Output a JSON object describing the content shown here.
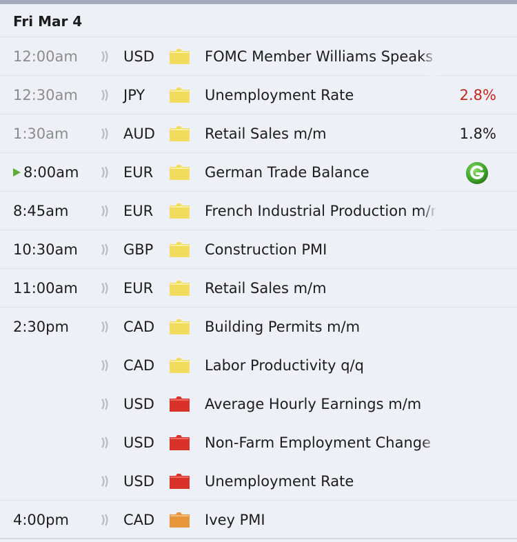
{
  "calendar": {
    "date": "Fri Mar 4",
    "events": [
      {
        "time": "12:00am",
        "currency": "USD",
        "title": "FOMC Member Williams Speaks",
        "impact": "low",
        "actual": ""
      },
      {
        "time": "12:30am",
        "currency": "JPY",
        "title": "Unemployment Rate",
        "impact": "low",
        "actual": "2.8%"
      },
      {
        "time": "1:30am",
        "currency": "AUD",
        "title": "Retail Sales m/m",
        "impact": "low",
        "actual": "1.8%"
      },
      {
        "time": "8:00am",
        "currency": "EUR",
        "title": "German Trade Balance",
        "impact": "low",
        "actual": ""
      },
      {
        "time": "8:45am",
        "currency": "EUR",
        "title": "French Industrial Production m/m",
        "impact": "low",
        "actual": ""
      },
      {
        "time": "10:30am",
        "currency": "GBP",
        "title": "Construction PMI",
        "impact": "low",
        "actual": ""
      },
      {
        "time": "11:00am",
        "currency": "EUR",
        "title": "Retail Sales m/m",
        "impact": "low",
        "actual": ""
      },
      {
        "time": "2:30pm",
        "currency": "CAD",
        "title": "Building Permits m/m",
        "impact": "low",
        "actual": ""
      },
      {
        "time": "",
        "currency": "CAD",
        "title": "Labor Productivity q/q",
        "impact": "low",
        "actual": ""
      },
      {
        "time": "",
        "currency": "USD",
        "title": "Average Hourly Earnings m/m",
        "impact": "high",
        "actual": ""
      },
      {
        "time": "",
        "currency": "USD",
        "title": "Non-Farm Employment Change",
        "impact": "high",
        "actual": ""
      },
      {
        "time": "",
        "currency": "USD",
        "title": "Unemployment Rate",
        "impact": "high",
        "actual": ""
      },
      {
        "time": "4:00pm",
        "currency": "CAD",
        "title": "Ivey PMI",
        "impact": "medium",
        "actual": ""
      }
    ]
  },
  "colors": {
    "impact_low": "#f2dc5d",
    "impact_medium": "#e6953a",
    "impact_high": "#d9322a",
    "actual_worse": "#c0281f",
    "past_time": "#8c8c8c",
    "current_marker": "#5bb033"
  },
  "icons": {
    "speaker": "speaker-icon",
    "impact": "impact-folder-icon",
    "graph": "graph-icon",
    "current": "current-event-marker-icon"
  }
}
